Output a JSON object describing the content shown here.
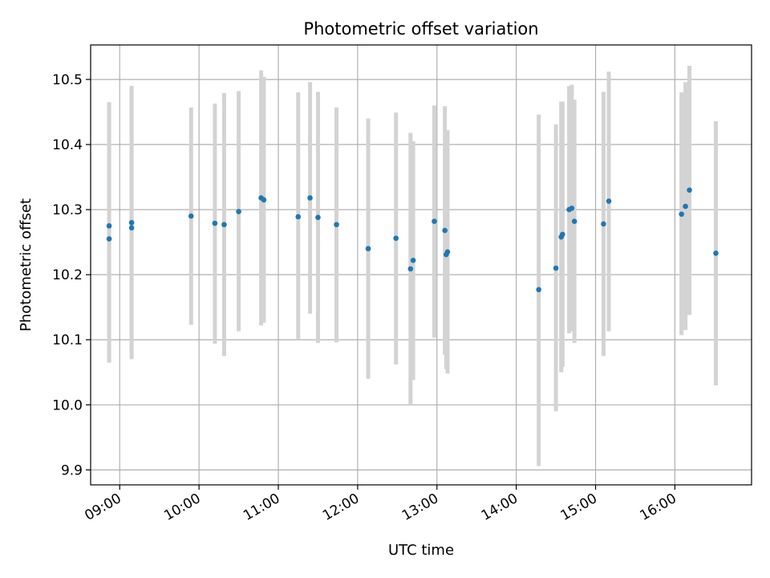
{
  "chart_data": {
    "type": "scatter",
    "title": "Photometric offset variation",
    "xlabel": "UTC time",
    "ylabel": "Photometric offset",
    "x_ticks": [
      "09:00",
      "10:00",
      "11:00",
      "12:00",
      "13:00",
      "14:00",
      "15:00",
      "16:00"
    ],
    "y_ticks": [
      "9.9",
      "10.0",
      "10.1",
      "10.2",
      "10.3",
      "10.4",
      "10.5"
    ],
    "xlim": [
      "08:38",
      "16:58"
    ],
    "ylim": [
      9.877,
      10.553
    ],
    "grid": true,
    "colors": {
      "point": "#1f77b4",
      "errorbar": "#d3d3d3",
      "grid": "#b0b0b0"
    },
    "points": [
      {
        "time": "08:52",
        "offset": 10.275,
        "err_low": 10.065,
        "err_high": 10.465
      },
      {
        "time": "08:52",
        "offset": 10.255,
        "err_low": 10.065,
        "err_high": 10.465
      },
      {
        "time": "09:09",
        "offset": 10.28,
        "err_low": 10.07,
        "err_high": 10.49
      },
      {
        "time": "09:09",
        "offset": 10.272,
        "err_low": 10.07,
        "err_high": 10.49
      },
      {
        "time": "09:54",
        "offset": 10.29,
        "err_low": 10.123,
        "err_high": 10.457
      },
      {
        "time": "10:12",
        "offset": 10.279,
        "err_low": 10.094,
        "err_high": 10.463
      },
      {
        "time": "10:19",
        "offset": 10.277,
        "err_low": 10.075,
        "err_high": 10.479
      },
      {
        "time": "10:30",
        "offset": 10.297,
        "err_low": 10.113,
        "err_high": 10.482
      },
      {
        "time": "10:47",
        "offset": 10.318,
        "err_low": 10.122,
        "err_high": 10.514
      },
      {
        "time": "10:49",
        "offset": 10.315,
        "err_low": 10.126,
        "err_high": 10.504
      },
      {
        "time": "11:15",
        "offset": 10.289,
        "err_low": 10.1,
        "err_high": 10.48
      },
      {
        "time": "11:24",
        "offset": 10.318,
        "err_low": 10.14,
        "err_high": 10.496
      },
      {
        "time": "11:30",
        "offset": 10.288,
        "err_low": 10.095,
        "err_high": 10.481
      },
      {
        "time": "11:44",
        "offset": 10.277,
        "err_low": 10.096,
        "err_high": 10.457
      },
      {
        "time": "12:08",
        "offset": 10.24,
        "err_low": 10.04,
        "err_high": 10.44
      },
      {
        "time": "12:29",
        "offset": 10.256,
        "err_low": 10.062,
        "err_high": 10.449
      },
      {
        "time": "12:40",
        "offset": 10.209,
        "err_low": 10.0,
        "err_high": 10.418
      },
      {
        "time": "12:42",
        "offset": 10.222,
        "err_low": 10.038,
        "err_high": 10.405
      },
      {
        "time": "12:58",
        "offset": 10.282,
        "err_low": 10.103,
        "err_high": 10.46
      },
      {
        "time": "13:06",
        "offset": 10.268,
        "err_low": 10.077,
        "err_high": 10.459
      },
      {
        "time": "13:07",
        "offset": 10.231,
        "err_low": 10.055,
        "err_high": 10.407
      },
      {
        "time": "13:08",
        "offset": 10.235,
        "err_low": 10.048,
        "err_high": 10.422
      },
      {
        "time": "14:17",
        "offset": 10.177,
        "err_low": 9.906,
        "err_high": 10.446
      },
      {
        "time": "14:30",
        "offset": 10.21,
        "err_low": 9.99,
        "err_high": 10.431
      },
      {
        "time": "14:34",
        "offset": 10.258,
        "err_low": 10.05,
        "err_high": 10.466
      },
      {
        "time": "14:35",
        "offset": 10.262,
        "err_low": 10.058,
        "err_high": 10.466
      },
      {
        "time": "14:40",
        "offset": 10.3,
        "err_low": 10.11,
        "err_high": 10.49
      },
      {
        "time": "14:42",
        "offset": 10.302,
        "err_low": 10.113,
        "err_high": 10.492
      },
      {
        "time": "14:44",
        "offset": 10.282,
        "err_low": 10.095,
        "err_high": 10.469
      },
      {
        "time": "15:06",
        "offset": 10.278,
        "err_low": 10.075,
        "err_high": 10.481
      },
      {
        "time": "15:10",
        "offset": 10.313,
        "err_low": 10.113,
        "err_high": 10.512
      },
      {
        "time": "16:05",
        "offset": 10.293,
        "err_low": 10.107,
        "err_high": 10.48
      },
      {
        "time": "16:08",
        "offset": 10.305,
        "err_low": 10.115,
        "err_high": 10.496
      },
      {
        "time": "16:11",
        "offset": 10.33,
        "err_low": 10.138,
        "err_high": 10.521
      },
      {
        "time": "16:31",
        "offset": 10.233,
        "err_low": 10.03,
        "err_high": 10.436
      }
    ]
  }
}
